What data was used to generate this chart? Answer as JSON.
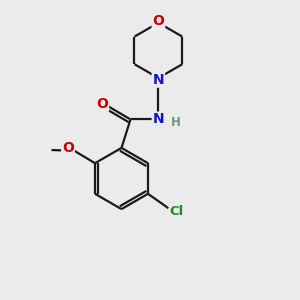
{
  "background_color": "#ebebeb",
  "bond_color": "#1a1a1a",
  "atom_colors": {
    "O": "#cc0000",
    "N": "#1414cc",
    "Cl": "#228b22",
    "H": "#6a9a6a"
  },
  "figsize": [
    3.0,
    3.0
  ],
  "dpi": 100,
  "lw": 1.6
}
